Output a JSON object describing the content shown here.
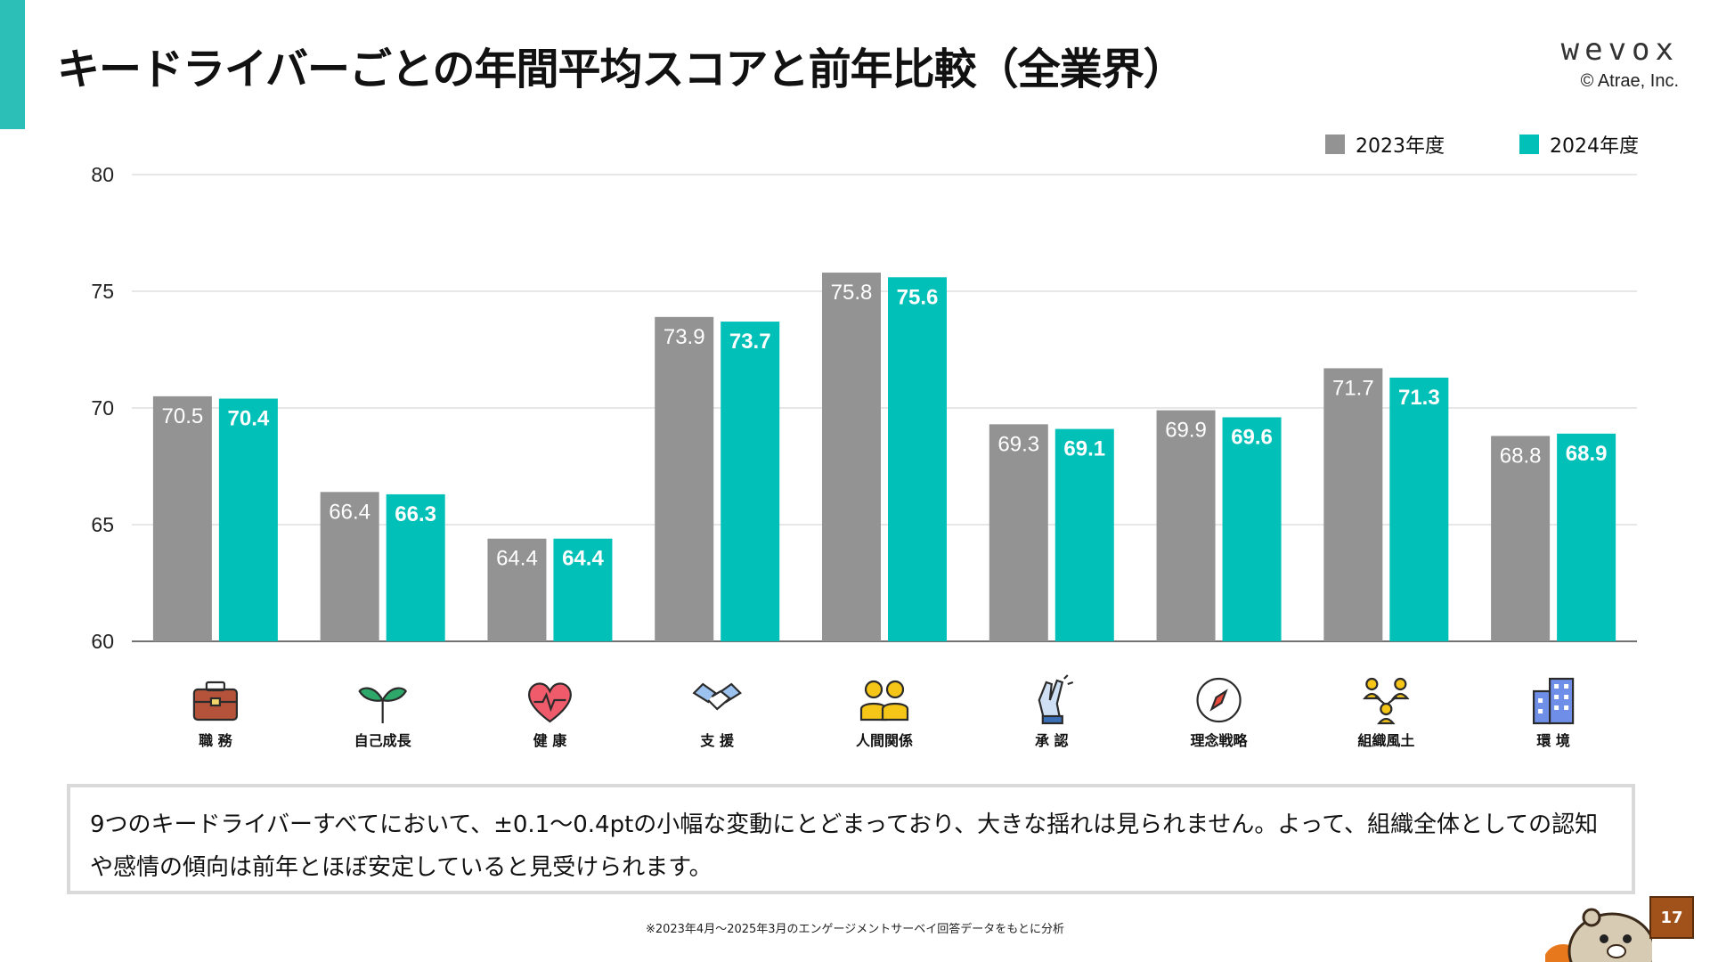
{
  "header": {
    "title": "キードライバーごとの年間平均スコアと前年比較（全業界）",
    "brand_logo": "wevox",
    "copyright": "© Atrae, Inc."
  },
  "colors": {
    "accent": "#2bbfb8",
    "series_2023": "#939393",
    "series_2024": "#00c0b8"
  },
  "chart_data": {
    "type": "bar",
    "categories": [
      "職 務",
      "自己成長",
      "健 康",
      "支 援",
      "人間関係",
      "承 認",
      "理念戦略",
      "組織風土",
      "環 境"
    ],
    "category_icons": [
      "briefcase-icon",
      "sprout-icon",
      "heart-pulse-icon",
      "handshake-icon",
      "people-icon",
      "high-five-icon",
      "compass-icon",
      "org-network-icon",
      "building-icon"
    ],
    "series": [
      {
        "name": "2023年度",
        "values": [
          70.5,
          66.4,
          64.4,
          73.9,
          75.8,
          69.3,
          69.9,
          71.7,
          68.8
        ]
      },
      {
        "name": "2024年度",
        "values": [
          70.4,
          66.3,
          64.4,
          73.7,
          75.6,
          69.1,
          69.6,
          71.3,
          68.9
        ]
      }
    ],
    "ylim": [
      60,
      80
    ],
    "yticks": [
      60,
      65,
      70,
      75,
      80
    ],
    "grid": true,
    "legend_position": "top-right"
  },
  "note": "9つのキードライバーすべてにおいて、±0.1〜0.4ptの小幅な変動にとどまっており、大きな揺れは見られません。よって、組織全体としての認知や感情の傾向は前年とほぼ安定していると見受けられます。",
  "footnote": "※2023年4月〜2025年3月のエンゲージメントサーベイ回答データをもとに分析",
  "page_number": "17"
}
